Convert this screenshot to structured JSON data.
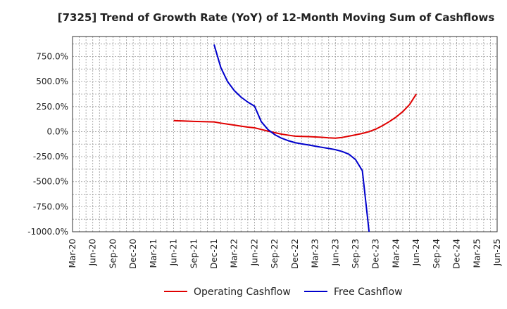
{
  "chart_data": {
    "type": "line",
    "title": "[7325]  Trend of Growth Rate (YoY) of 12-Month Moving Sum of Cashflows",
    "xlabel": "",
    "ylabel": "",
    "x_ticks": [
      "Mar-20",
      "Jun-20",
      "Sep-20",
      "Dec-20",
      "Mar-21",
      "Jun-21",
      "Sep-21",
      "Dec-21",
      "Mar-22",
      "Jun-22",
      "Sep-22",
      "Dec-22",
      "Mar-23",
      "Jun-23",
      "Sep-23",
      "Dec-23",
      "Mar-24",
      "Jun-24",
      "Sep-24",
      "Dec-24",
      "Mar-25",
      "Jun-25"
    ],
    "y_ticks": [
      "750.0%",
      "500.0%",
      "250.0%",
      "0.0%",
      "-250.0%",
      "-500.0%",
      "-750.0%",
      "-1000.0%"
    ],
    "ylim": [
      -1000,
      950
    ],
    "grid": true,
    "legend_position": "bottom",
    "series": [
      {
        "name": "Operating Cashflow",
        "color": "#e00000",
        "points": [
          [
            "Jun-21",
            110
          ],
          [
            "Sep-21",
            102
          ],
          [
            "Dec-21",
            97
          ],
          [
            "Jan-22",
            85
          ],
          [
            "Feb-22",
            75
          ],
          [
            "Mar-22",
            65
          ],
          [
            "Apr-22",
            55
          ],
          [
            "May-22",
            45
          ],
          [
            "Jun-22",
            38
          ],
          [
            "Jul-22",
            22
          ],
          [
            "Aug-22",
            5
          ],
          [
            "Sep-22",
            -10
          ],
          [
            "Oct-22",
            -25
          ],
          [
            "Nov-22",
            -35
          ],
          [
            "Dec-22",
            -45
          ],
          [
            "Jan-23",
            -48
          ],
          [
            "Feb-23",
            -50
          ],
          [
            "Mar-23",
            -53
          ],
          [
            "Apr-23",
            -57
          ],
          [
            "May-23",
            -62
          ],
          [
            "Jun-23",
            -65
          ],
          [
            "Jul-23",
            -58
          ],
          [
            "Aug-23",
            -45
          ],
          [
            "Sep-23",
            -32
          ],
          [
            "Oct-23",
            -18
          ],
          [
            "Nov-23",
            0
          ],
          [
            "Dec-23",
            25
          ],
          [
            "Jan-24",
            60
          ],
          [
            "Feb-24",
            100
          ],
          [
            "Mar-24",
            145
          ],
          [
            "Apr-24",
            200
          ],
          [
            "May-24",
            270
          ],
          [
            "Jun-24",
            375
          ]
        ]
      },
      {
        "name": "Free Cashflow",
        "color": "#0000cc",
        "points": [
          [
            "Dec-21",
            870
          ],
          [
            "Jan-22",
            640
          ],
          [
            "Feb-22",
            500
          ],
          [
            "Mar-22",
            410
          ],
          [
            "Apr-22",
            345
          ],
          [
            "May-22",
            295
          ],
          [
            "Jun-22",
            255
          ],
          [
            "Jul-22",
            100
          ],
          [
            "Aug-22",
            20
          ],
          [
            "Sep-22",
            -30
          ],
          [
            "Oct-22",
            -65
          ],
          [
            "Nov-22",
            -90
          ],
          [
            "Dec-22",
            -110
          ],
          [
            "Jan-23",
            -122
          ],
          [
            "Feb-23",
            -133
          ],
          [
            "Mar-23",
            -145
          ],
          [
            "Apr-23",
            -157
          ],
          [
            "May-23",
            -168
          ],
          [
            "Jun-23",
            -180
          ],
          [
            "Jul-23",
            -198
          ],
          [
            "Aug-23",
            -225
          ],
          [
            "Sep-23",
            -280
          ],
          [
            "Oct-23",
            -390
          ],
          [
            "Nov-23",
            -1000
          ]
        ]
      }
    ]
  }
}
